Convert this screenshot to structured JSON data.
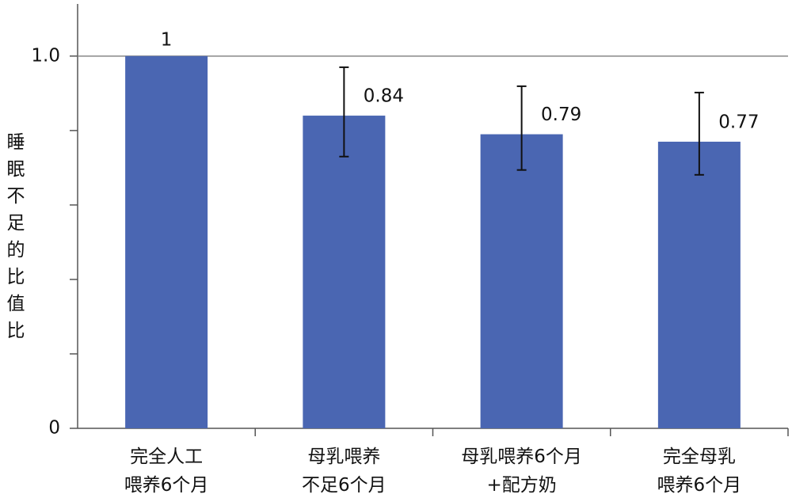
{
  "chart_data": {
    "type": "bar",
    "y_label": "睡眠不足的比值比",
    "categories": [
      "完全人工\n喂养6个月",
      "母乳喂养\n不足6个月",
      "母乳喂养6个月\n+配方奶",
      "完全母乳\n喂养6个月"
    ],
    "values": [
      1,
      0.84,
      0.79,
      0.77
    ],
    "error_low": [
      null,
      0.73,
      0.694,
      0.681
    ],
    "error_high": [
      null,
      0.97,
      0.919,
      0.902
    ],
    "color": "#4a66b2",
    "ylim": [
      0,
      1.14
    ],
    "yticks": [
      0,
      {
        "value": 1,
        "label": "1.0"
      }
    ],
    "minor_yticks": [
      0.2,
      0.4,
      0.6,
      0.8
    ],
    "reference_line": 1
  }
}
